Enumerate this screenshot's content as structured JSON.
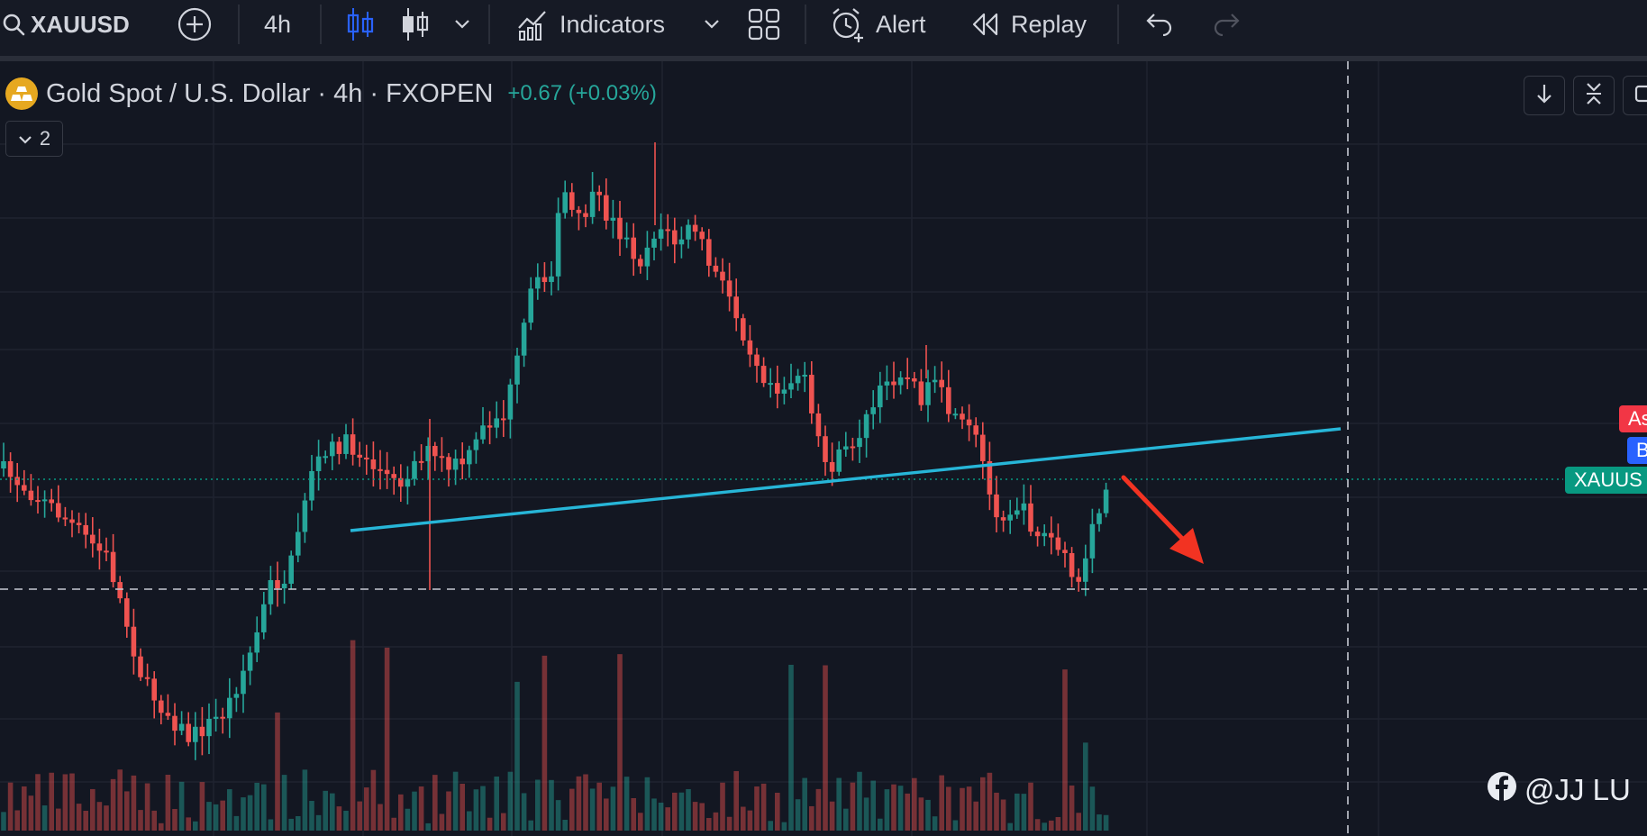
{
  "toolbar": {
    "symbol": "XAUUSD",
    "interval": "4h",
    "indicators_label": "Indicators",
    "alert_label": "Alert",
    "replay_label": "Replay"
  },
  "legend": {
    "title": "Gold Spot / U.S. Dollar · 4h · FXOPEN",
    "change": "+0.67 (+0.03%)",
    "collapse_count": "2"
  },
  "price_labels": {
    "ask": "As",
    "bid": "B",
    "last": "XAUUS"
  },
  "watermark": {
    "handle": "@JJ LU"
  },
  "colors": {
    "up": "#26a69a",
    "down": "#ef5350",
    "trendline": "#27b6d8",
    "arrow": "#f23322",
    "background": "#131722"
  },
  "chart_data": {
    "type": "candlestick",
    "annotations": [
      "rising trendline",
      "horizontal dashed support line",
      "red down arrow"
    ]
  }
}
